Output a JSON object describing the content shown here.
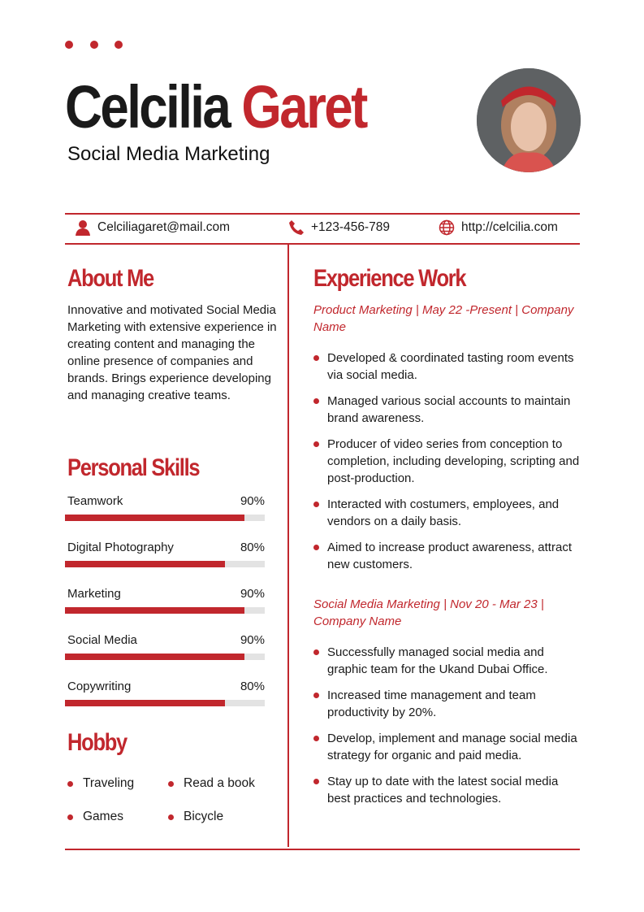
{
  "header": {
    "first_name": "Celcilia",
    "last_name": "Garet",
    "title": "Social Media Marketing"
  },
  "contact": {
    "email": "Celciliagaret@mail.com",
    "phone": "+123-456-789",
    "website": "http://celcilia.com"
  },
  "about": {
    "heading": "About Me",
    "text": "Innovative and motivated Social Media Marketing with extensive experience in creating content and managing the online presence of companies and brands. Brings experience developing and managing creative teams."
  },
  "skills": {
    "heading": "Personal Skills",
    "items": [
      {
        "label": "Teamwork",
        "percent_label": "90%",
        "value": 90
      },
      {
        "label": "Digital Photography",
        "percent_label": "80%",
        "value": 80
      },
      {
        "label": "Marketing",
        "percent_label": "90%",
        "value": 90
      },
      {
        "label": "Social Media",
        "percent_label": "90%",
        "value": 90
      },
      {
        "label": "Copywriting",
        "percent_label": "80%",
        "value": 80
      }
    ]
  },
  "hobby": {
    "heading": "Hobby",
    "items": [
      "Traveling",
      "Read a book",
      "Games",
      "Bicycle"
    ]
  },
  "experience": {
    "heading": "Experience Work",
    "jobs": [
      {
        "title": "Product Marketing | May 22 -Present | Company Name",
        "bullets": [
          "Developed & coordinated tasting room events via social media.",
          "Managed various social accounts to maintain brand awareness.",
          "Producer of video series from conception to completion, including developing, scripting and post-production.",
          "Interacted with costumers, employees, and vendors on a daily basis.",
          "Aimed to increase product awareness, attract new customers."
        ]
      },
      {
        "title": "Social Media Marketing | Nov 20 - Mar 23 | Company Name",
        "bullets": [
          "Successfully managed social media and graphic team for the Ukand Dubai Office.",
          "Increased time management and team productivity by 20%.",
          "Develop, implement and manage social media strategy for organic and paid media.",
          "Stay up to date with the latest social media best practices and technologies."
        ]
      }
    ]
  },
  "colors": {
    "accent": "#c1272d"
  }
}
